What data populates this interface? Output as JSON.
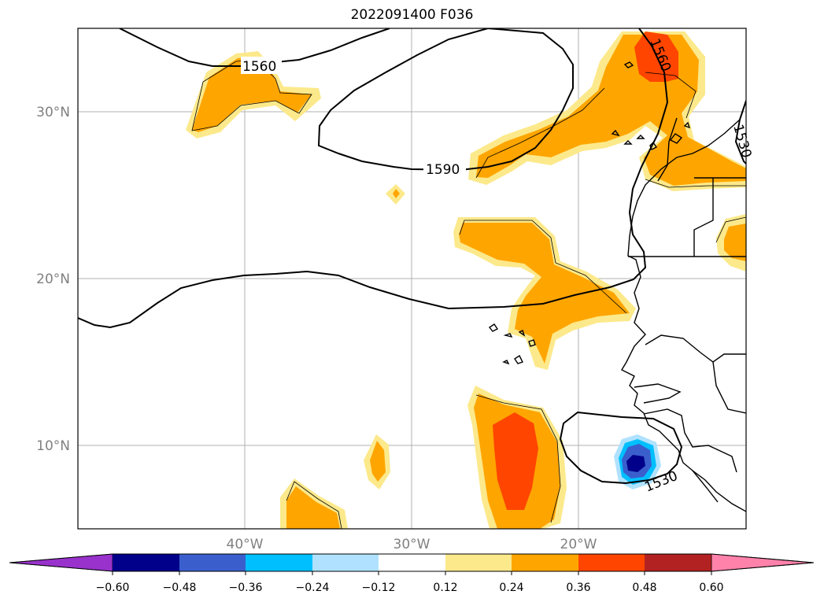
{
  "title": "2022091400 F036",
  "map": {
    "lat_labels": [
      "30°N",
      "20°N",
      "10°N"
    ],
    "lon_labels": [
      "40°W",
      "30°W",
      "20°W"
    ],
    "contour_labels": [
      "1560",
      "1590",
      "1560",
      "1530",
      "1530"
    ],
    "contour_line_color": "#000000",
    "gridline_color": "#b0b0b0"
  },
  "colorbar": {
    "colors": [
      "#9932cc",
      "#00008b",
      "#3a5fcd",
      "#00bfff",
      "#b0e2ff",
      "#ffffff",
      "#fce98b",
      "#ffa500",
      "#ff4500",
      "#b22222",
      "#ff82ab"
    ],
    "tick_labels": [
      "−0.60",
      "−0.48",
      "−0.36",
      "−0.24",
      "−0.12",
      "0.12",
      "0.24",
      "0.36",
      "0.48",
      "0.60"
    ]
  }
}
